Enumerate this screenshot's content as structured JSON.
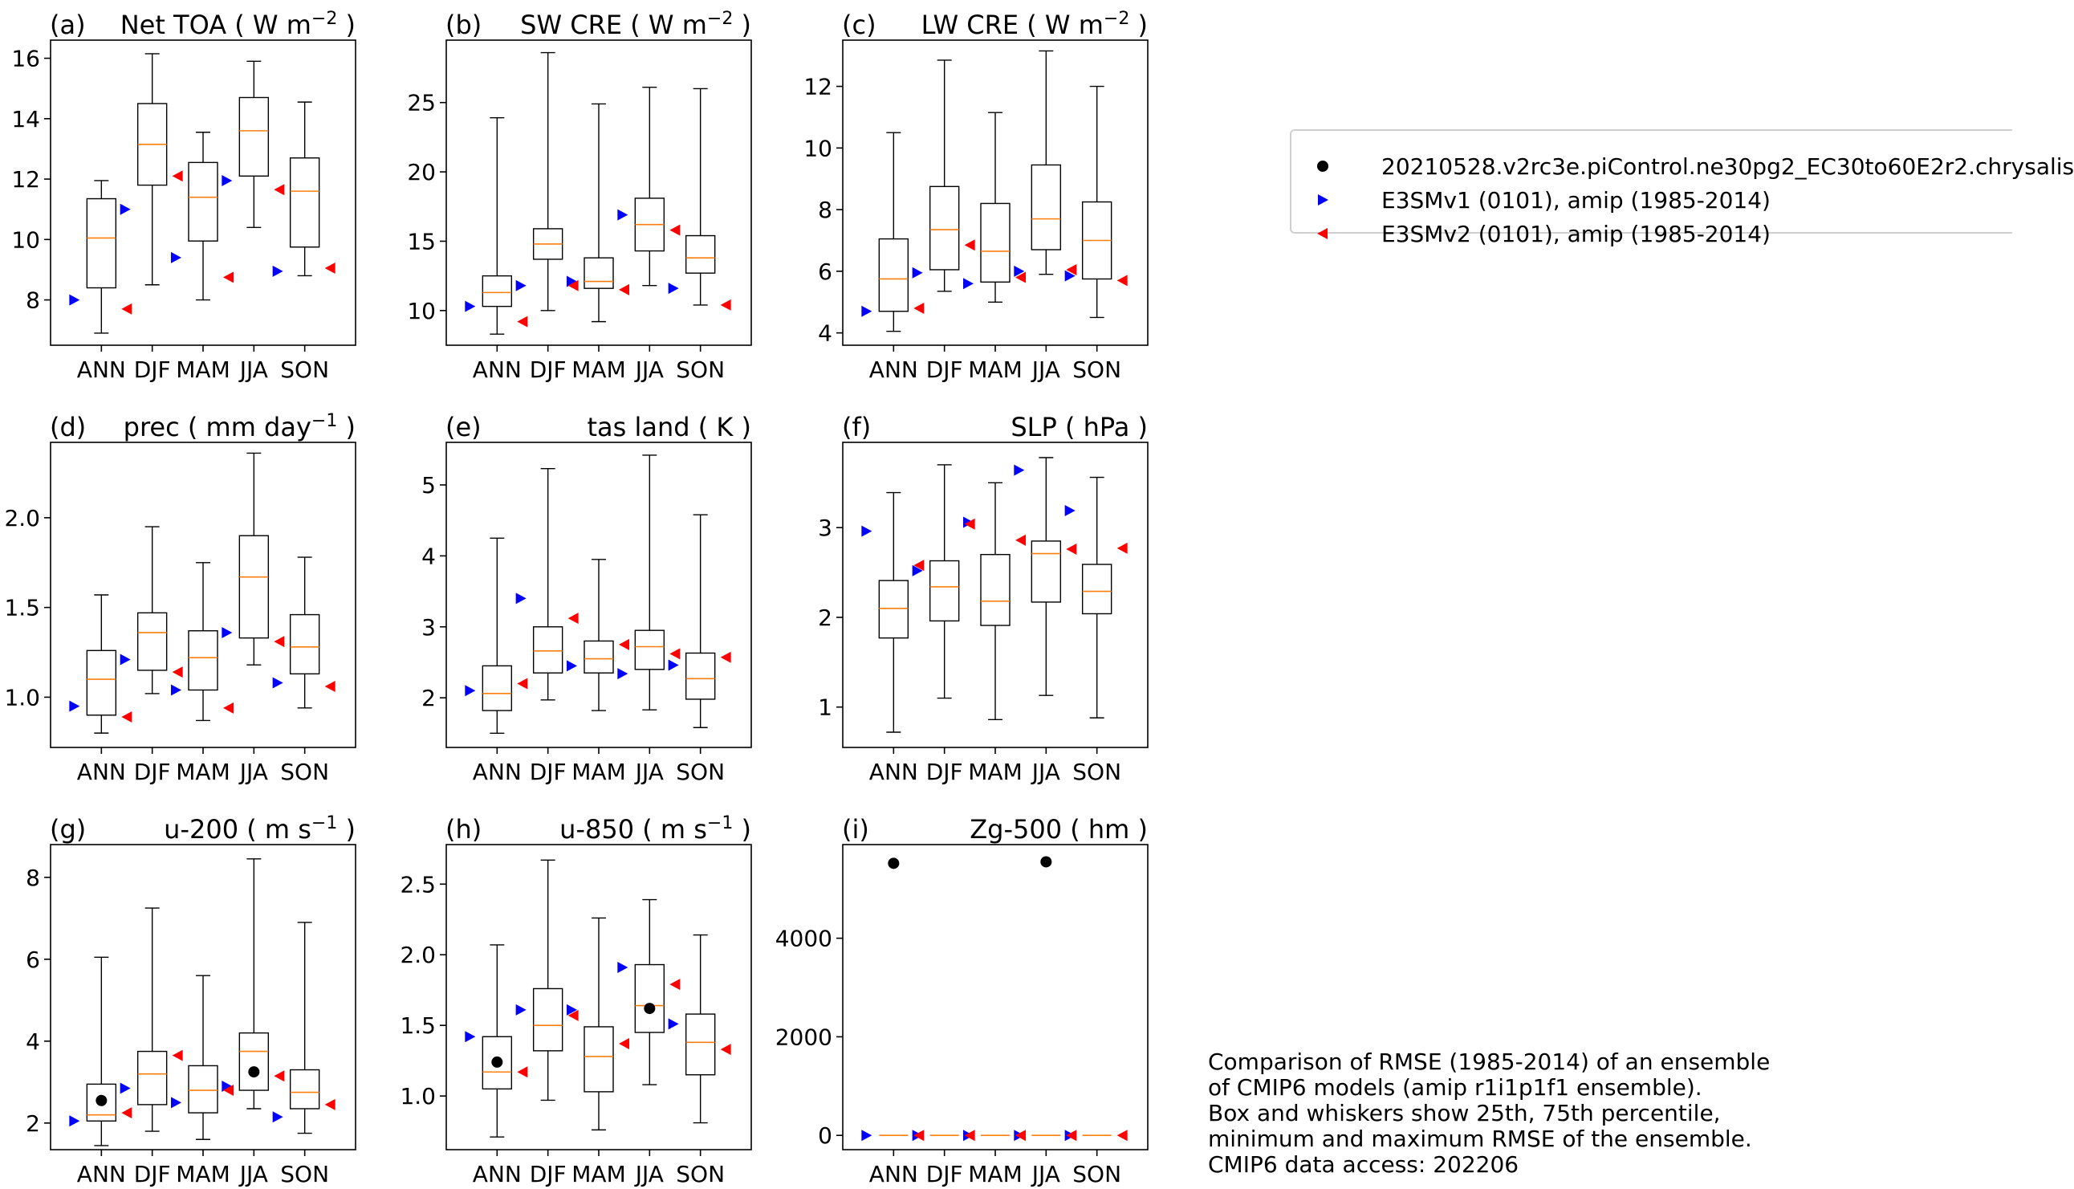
{
  "legend": {
    "items": [
      {
        "label": "20210528.v2rc3e.piControl.ne30pg2_EC30to60E2r2.chrysalis",
        "marker": "circle",
        "color": "#000000"
      },
      {
        "label": "E3SMv1 (0101), amip (1985-2014)",
        "marker": "triangle-right",
        "color": "#0000ff"
      },
      {
        "label": "E3SMv2 (0101), amip (1985-2014)",
        "marker": "triangle-left",
        "color": "#ff0000"
      }
    ]
  },
  "caption": {
    "lines": [
      "Comparison of RMSE (1985-2014) of an ensemble",
      "of CMIP6 models (amip r1i1p1f1 ensemble).",
      "Box and whiskers show 25th, 75th percentile,",
      "minimum and maximum RMSE of the ensemble.",
      "CMIP6 data access: 202206"
    ]
  },
  "colors": {
    "median": "#ff7f0e",
    "v1": "#0000ff",
    "v2": "#ff0000",
    "test": "#000000"
  },
  "chart_data": [
    {
      "type": "box",
      "panel": "(a)",
      "title": "Net TOA",
      "units": "W m",
      "units_exp": "−2",
      "units_tail": "",
      "categories": [
        "ANN",
        "DJF",
        "MAM",
        "JJA",
        "SON"
      ],
      "ylim": [
        6.5,
        16.6
      ],
      "yticks": [
        8,
        10,
        12,
        14,
        16
      ],
      "tick_labels": [
        "8",
        "10",
        "12",
        "14",
        "16"
      ],
      "boxes": [
        {
          "min": 6.9,
          "q1": 8.4,
          "median": 10.05,
          "q3": 11.35,
          "max": 11.95
        },
        {
          "min": 8.5,
          "q1": 11.8,
          "median": 13.15,
          "q3": 14.5,
          "max": 16.15
        },
        {
          "min": 8.0,
          "q1": 9.95,
          "median": 11.4,
          "q3": 12.55,
          "max": 13.55
        },
        {
          "min": 10.4,
          "q1": 12.1,
          "median": 13.6,
          "q3": 14.7,
          "max": 15.9
        },
        {
          "min": 8.8,
          "q1": 9.75,
          "median": 11.6,
          "q3": 12.7,
          "max": 14.55
        }
      ],
      "v1": [
        8.0,
        11.0,
        9.4,
        11.95,
        8.95
      ],
      "v2": [
        7.7,
        12.1,
        8.75,
        11.65,
        9.05
      ],
      "test": []
    },
    {
      "type": "box",
      "panel": "(b)",
      "title": "SW CRE",
      "units": "W m",
      "units_exp": "−2",
      "units_tail": "",
      "categories": [
        "ANN",
        "DJF",
        "MAM",
        "JJA",
        "SON"
      ],
      "ylim": [
        7.5,
        29.5
      ],
      "yticks": [
        10,
        15,
        20,
        25
      ],
      "tick_labels": [
        "10",
        "15",
        "20",
        "25"
      ],
      "boxes": [
        {
          "min": 8.3,
          "q1": 10.3,
          "median": 11.3,
          "q3": 12.5,
          "max": 23.9
        },
        {
          "min": 10.0,
          "q1": 13.7,
          "median": 14.8,
          "q3": 15.9,
          "max": 28.6
        },
        {
          "min": 9.2,
          "q1": 11.6,
          "median": 12.1,
          "q3": 13.8,
          "max": 24.9
        },
        {
          "min": 11.8,
          "q1": 14.3,
          "median": 16.2,
          "q3": 18.1,
          "max": 26.1
        },
        {
          "min": 10.4,
          "q1": 12.7,
          "median": 13.8,
          "q3": 15.4,
          "max": 26.0
        }
      ],
      "v1": [
        10.3,
        11.8,
        12.1,
        16.9,
        11.6
      ],
      "v2": [
        9.2,
        11.8,
        11.5,
        15.8,
        10.4
      ],
      "test": []
    },
    {
      "type": "box",
      "panel": "(c)",
      "title": "LW CRE",
      "units": "W m",
      "units_exp": "−2",
      "units_tail": "",
      "categories": [
        "ANN",
        "DJF",
        "MAM",
        "JJA",
        "SON"
      ],
      "ylim": [
        3.6,
        13.5
      ],
      "yticks": [
        4,
        6,
        8,
        10,
        12
      ],
      "tick_labels": [
        "4",
        "6",
        "8",
        "10",
        "12"
      ],
      "boxes": [
        {
          "min": 4.05,
          "q1": 4.7,
          "median": 5.75,
          "q3": 7.05,
          "max": 10.5
        },
        {
          "min": 5.35,
          "q1": 6.05,
          "median": 7.35,
          "q3": 8.75,
          "max": 12.85
        },
        {
          "min": 5.0,
          "q1": 5.65,
          "median": 6.65,
          "q3": 8.2,
          "max": 11.15
        },
        {
          "min": 5.9,
          "q1": 6.7,
          "median": 7.7,
          "q3": 9.45,
          "max": 13.15
        },
        {
          "min": 4.5,
          "q1": 5.75,
          "median": 7.0,
          "q3": 8.25,
          "max": 12.0
        }
      ],
      "v1": [
        4.7,
        5.95,
        5.6,
        6.0,
        5.85
      ],
      "v2": [
        4.8,
        6.85,
        5.8,
        6.05,
        5.7
      ],
      "test": []
    },
    {
      "type": "box",
      "panel": "(d)",
      "title": "prec",
      "units": "mm day",
      "units_exp": "−1",
      "units_tail": "",
      "categories": [
        "ANN",
        "DJF",
        "MAM",
        "JJA",
        "SON"
      ],
      "ylim": [
        0.72,
        2.42
      ],
      "yticks": [
        1.0,
        1.5,
        2.0
      ],
      "tick_labels": [
        "1.0",
        "1.5",
        "2.0"
      ],
      "boxes": [
        {
          "min": 0.8,
          "q1": 0.9,
          "median": 1.1,
          "q3": 1.26,
          "max": 1.57
        },
        {
          "min": 1.02,
          "q1": 1.15,
          "median": 1.36,
          "q3": 1.47,
          "max": 1.95
        },
        {
          "min": 0.87,
          "q1": 1.04,
          "median": 1.22,
          "q3": 1.37,
          "max": 1.75
        },
        {
          "min": 1.18,
          "q1": 1.33,
          "median": 1.67,
          "q3": 1.9,
          "max": 2.36
        },
        {
          "min": 0.94,
          "q1": 1.13,
          "median": 1.28,
          "q3": 1.46,
          "max": 1.78
        }
      ],
      "v1": [
        0.95,
        1.21,
        1.04,
        1.36,
        1.08
      ],
      "v2": [
        0.89,
        1.14,
        0.94,
        1.31,
        1.06
      ],
      "test": []
    },
    {
      "type": "box",
      "panel": "(e)",
      "title": "tas land",
      "units": "K",
      "units_exp": "",
      "units_tail": "",
      "categories": [
        "ANN",
        "DJF",
        "MAM",
        "JJA",
        "SON"
      ],
      "ylim": [
        1.3,
        5.6
      ],
      "yticks": [
        2,
        3,
        4,
        5
      ],
      "tick_labels": [
        "2",
        "3",
        "4",
        "5"
      ],
      "boxes": [
        {
          "min": 1.5,
          "q1": 1.82,
          "median": 2.06,
          "q3": 2.45,
          "max": 4.25
        },
        {
          "min": 1.97,
          "q1": 2.35,
          "median": 2.66,
          "q3": 3.0,
          "max": 5.23
        },
        {
          "min": 1.82,
          "q1": 2.35,
          "median": 2.55,
          "q3": 2.8,
          "max": 3.95
        },
        {
          "min": 1.83,
          "q1": 2.4,
          "median": 2.72,
          "q3": 2.95,
          "max": 5.42
        },
        {
          "min": 1.58,
          "q1": 1.98,
          "median": 2.27,
          "q3": 2.63,
          "max": 4.58
        }
      ],
      "v1": [
        2.1,
        3.4,
        2.45,
        2.34,
        2.46
      ],
      "v2": [
        2.2,
        3.12,
        2.75,
        2.62,
        2.57
      ],
      "test": []
    },
    {
      "type": "box",
      "panel": "(f)",
      "title": "SLP",
      "units": "hPa",
      "units_exp": "",
      "units_tail": "",
      "categories": [
        "ANN",
        "DJF",
        "MAM",
        "JJA",
        "SON"
      ],
      "ylim": [
        0.55,
        3.95
      ],
      "yticks": [
        1,
        2,
        3
      ],
      "tick_labels": [
        "1",
        "2",
        "3"
      ],
      "boxes": [
        {
          "min": 0.72,
          "q1": 1.77,
          "median": 2.1,
          "q3": 2.41,
          "max": 3.39
        },
        {
          "min": 1.1,
          "q1": 1.96,
          "median": 2.34,
          "q3": 2.63,
          "max": 3.7
        },
        {
          "min": 0.86,
          "q1": 1.91,
          "median": 2.18,
          "q3": 2.7,
          "max": 3.5
        },
        {
          "min": 1.13,
          "q1": 2.17,
          "median": 2.71,
          "q3": 2.85,
          "max": 3.78
        },
        {
          "min": 0.88,
          "q1": 2.04,
          "median": 2.29,
          "q3": 2.59,
          "max": 3.56
        }
      ],
      "v1": [
        2.96,
        2.52,
        3.06,
        3.64,
        3.19
      ],
      "v2": [
        2.58,
        3.04,
        2.86,
        2.76,
        2.77
      ],
      "test": []
    },
    {
      "type": "box",
      "panel": "(g)",
      "title": "u-200",
      "units": "m s",
      "units_exp": "−1",
      "units_tail": "",
      "categories": [
        "ANN",
        "DJF",
        "MAM",
        "JJA",
        "SON"
      ],
      "ylim": [
        1.35,
        8.8
      ],
      "yticks": [
        2,
        4,
        6,
        8
      ],
      "tick_labels": [
        "2",
        "4",
        "6",
        "8"
      ],
      "boxes": [
        {
          "min": 1.45,
          "q1": 2.05,
          "median": 2.2,
          "q3": 2.95,
          "max": 6.05
        },
        {
          "min": 1.8,
          "q1": 2.45,
          "median": 3.2,
          "q3": 3.75,
          "max": 7.25
        },
        {
          "min": 1.6,
          "q1": 2.25,
          "median": 2.8,
          "q3": 3.4,
          "max": 5.6
        },
        {
          "min": 2.35,
          "q1": 2.8,
          "median": 3.75,
          "q3": 4.2,
          "max": 8.45
        },
        {
          "min": 1.75,
          "q1": 2.35,
          "median": 2.75,
          "q3": 3.3,
          "max": 6.9
        }
      ],
      "v1": [
        2.05,
        2.85,
        2.5,
        2.9,
        2.15
      ],
      "v2": [
        2.25,
        3.65,
        2.8,
        3.15,
        2.45
      ],
      "test": [
        2.55,
        null,
        null,
        3.25,
        null
      ]
    },
    {
      "type": "box",
      "panel": "(h)",
      "title": "u-850",
      "units": "m s",
      "units_exp": "−1",
      "units_tail": "",
      "categories": [
        "ANN",
        "DJF",
        "MAM",
        "JJA",
        "SON"
      ],
      "ylim": [
        0.62,
        2.78
      ],
      "yticks": [
        1.0,
        1.5,
        2.0,
        2.5
      ],
      "tick_labels": [
        "1.0",
        "1.5",
        "2.0",
        "2.5"
      ],
      "boxes": [
        {
          "min": 0.71,
          "q1": 1.05,
          "median": 1.17,
          "q3": 1.42,
          "max": 2.07
        },
        {
          "min": 0.97,
          "q1": 1.32,
          "median": 1.5,
          "q3": 1.76,
          "max": 2.67
        },
        {
          "min": 0.76,
          "q1": 1.03,
          "median": 1.28,
          "q3": 1.49,
          "max": 2.26
        },
        {
          "min": 1.08,
          "q1": 1.45,
          "median": 1.64,
          "q3": 1.93,
          "max": 2.39
        },
        {
          "min": 0.81,
          "q1": 1.15,
          "median": 1.38,
          "q3": 1.58,
          "max": 2.14
        }
      ],
      "v1": [
        1.42,
        1.61,
        1.61,
        1.91,
        1.51
      ],
      "v2": [
        1.17,
        1.57,
        1.37,
        1.79,
        1.33
      ],
      "test": [
        1.24,
        null,
        null,
        1.62,
        null
      ]
    },
    {
      "type": "box",
      "panel": "(i)",
      "title": "Zg-500",
      "units": "hm",
      "units_exp": "",
      "units_tail": "",
      "categories": [
        "ANN",
        "DJF",
        "MAM",
        "JJA",
        "SON"
      ],
      "ylim": [
        -290,
        5900
      ],
      "yticks": [
        0,
        2000,
        4000
      ],
      "tick_labels": [
        "0",
        "2000",
        "4000"
      ],
      "boxes": [
        {
          "min": 0,
          "q1": 0,
          "median": 0,
          "q3": 0,
          "max": 0
        },
        {
          "min": 0,
          "q1": 0,
          "median": 0,
          "q3": 0,
          "max": 0
        },
        {
          "min": 0,
          "q1": 0,
          "median": 0,
          "q3": 0,
          "max": 0
        },
        {
          "min": 0,
          "q1": 0,
          "median": 0,
          "q3": 0,
          "max": 0
        },
        {
          "min": 0,
          "q1": 0,
          "median": 0,
          "q3": 0,
          "max": 0
        }
      ],
      "v1": [
        0,
        0,
        0,
        0,
        0
      ],
      "v2": [
        0,
        0,
        0,
        0,
        0
      ],
      "test": [
        5520,
        null,
        null,
        5550,
        null
      ]
    }
  ]
}
